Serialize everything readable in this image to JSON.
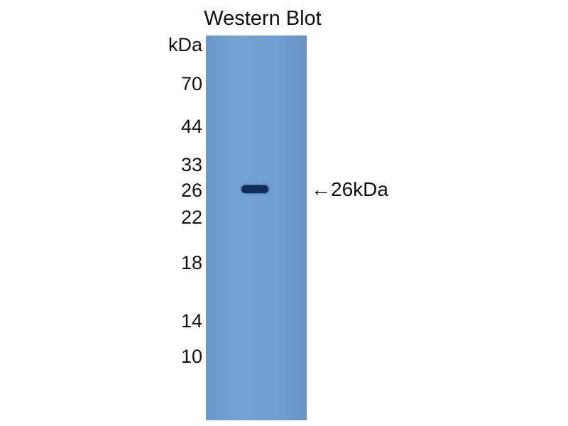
{
  "title": "Western Blot",
  "unit_label": "kDa",
  "markers": [
    "70",
    "44",
    "33",
    "26",
    "22",
    "18",
    "14",
    "10"
  ],
  "band": {
    "size_kda": 26
  },
  "annotation": {
    "arrow": "←",
    "label": "26kDa"
  },
  "colors": {
    "membrane": "#709ed0",
    "band": "#0e2b58"
  }
}
